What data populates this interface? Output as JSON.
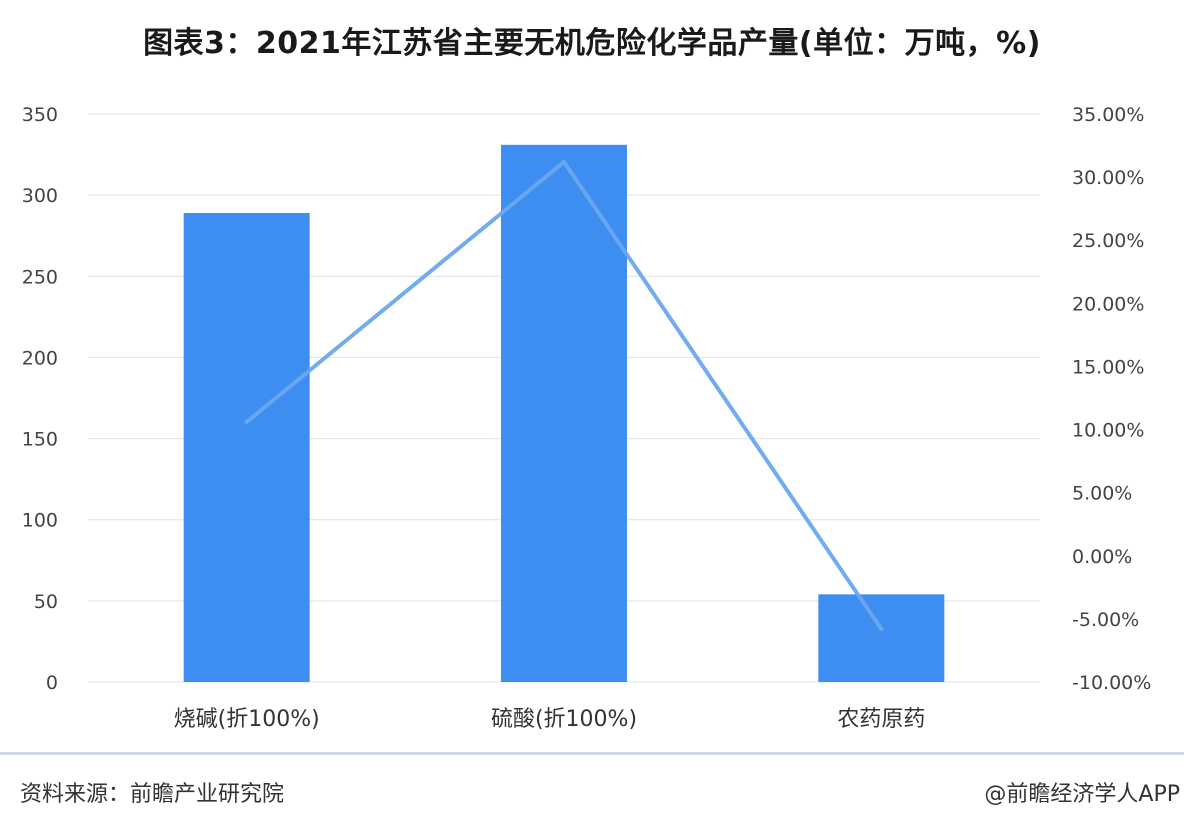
{
  "title": "图表3：2021年江苏省主要无机危险化学品产量(单位：万吨，%)",
  "footer": {
    "source": "资料来源：前瞻产业研究院",
    "brand": "@前瞻经济学人APP"
  },
  "colors": {
    "bar": "#3d8ef0",
    "line": "#6aa8ee",
    "grid": "#dde3ec"
  },
  "chart_data": {
    "type": "bar",
    "categories": [
      "烧碱(折100%)",
      "硫酸(折100%)",
      "农药原药"
    ],
    "series": [
      {
        "type": "bar",
        "axis": "left",
        "values": [
          289,
          331,
          54
        ]
      },
      {
        "type": "line",
        "axis": "right",
        "values": [
          10.6,
          31.2,
          -5.8
        ]
      }
    ],
    "y_left": {
      "min": 0,
      "max": 350,
      "ticks": [
        "0",
        "50",
        "100",
        "150",
        "200",
        "250",
        "300",
        "350"
      ]
    },
    "y_right": {
      "min": -10,
      "max": 35,
      "ticks": [
        "-10.00%",
        "-5.00%",
        "0.00%",
        "5.00%",
        "10.00%",
        "15.00%",
        "20.00%",
        "25.00%",
        "30.00%",
        "35.00%"
      ]
    },
    "grid": true,
    "legend": "none"
  }
}
